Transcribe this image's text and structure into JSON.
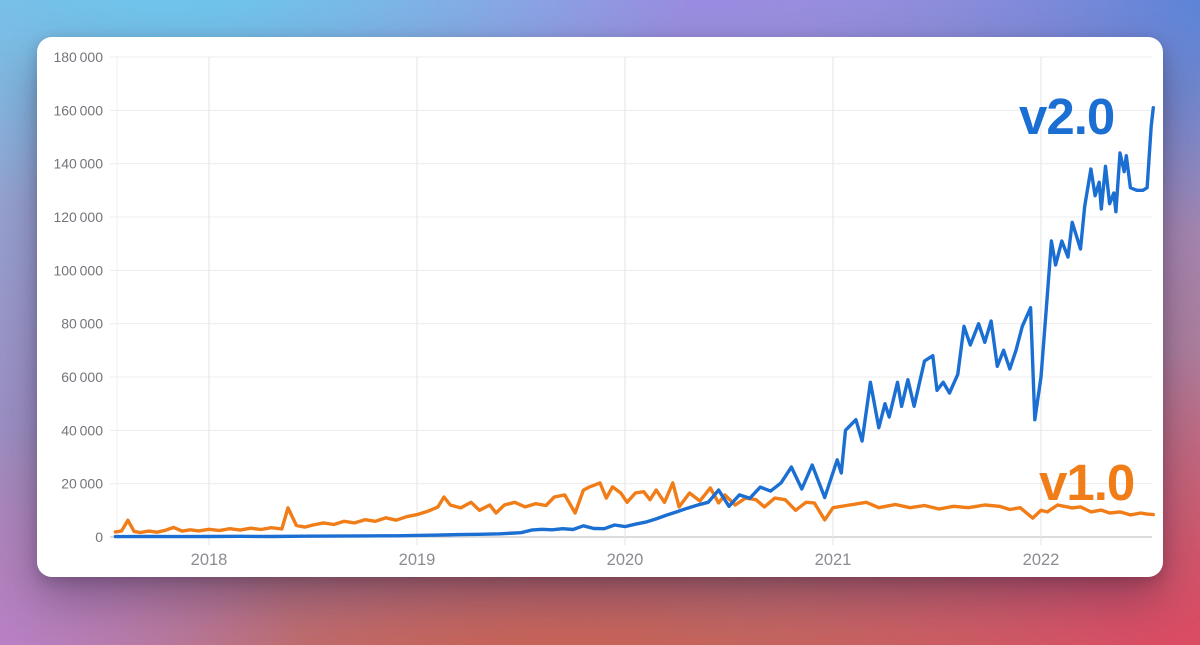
{
  "chart_data": {
    "type": "line",
    "title": "",
    "xlabel": "",
    "ylabel": "",
    "grid": true,
    "legend_position": "inline-end-of-line",
    "x_axis": {
      "range": [
        2017.55,
        2022.54
      ],
      "ticks": [
        {
          "year": 2018,
          "label": "2018"
        },
        {
          "year": 2019,
          "label": "2019"
        },
        {
          "year": 2020,
          "label": "2020"
        },
        {
          "year": 2021,
          "label": "2021"
        },
        {
          "year": 2022,
          "label": "2022"
        }
      ]
    },
    "y_axis": {
      "range": [
        0,
        180000
      ],
      "ticks": [
        {
          "value": 0,
          "label": "0"
        },
        {
          "value": 20000,
          "label": "20 000"
        },
        {
          "value": 40000,
          "label": "40 000"
        },
        {
          "value": 60000,
          "label": "60 000"
        },
        {
          "value": 80000,
          "label": "80 000"
        },
        {
          "value": 100000,
          "label": "100 000"
        },
        {
          "value": 120000,
          "label": "120 000"
        },
        {
          "value": 140000,
          "label": "140 000"
        },
        {
          "value": 160000,
          "label": "160 000"
        },
        {
          "value": 180000,
          "label": "180 000"
        }
      ]
    },
    "series": [
      {
        "name": "v1.0",
        "color": "#f07d18",
        "points": [
          [
            2017.55,
            1900
          ],
          [
            2017.58,
            2300
          ],
          [
            2017.61,
            6300
          ],
          [
            2017.64,
            2100
          ],
          [
            2017.67,
            1700
          ],
          [
            2017.71,
            2200
          ],
          [
            2017.75,
            1800
          ],
          [
            2017.79,
            2500
          ],
          [
            2017.83,
            3600
          ],
          [
            2017.87,
            2200
          ],
          [
            2017.91,
            2700
          ],
          [
            2017.95,
            2300
          ],
          [
            2018.0,
            2900
          ],
          [
            2018.05,
            2400
          ],
          [
            2018.1,
            3100
          ],
          [
            2018.15,
            2600
          ],
          [
            2018.2,
            3300
          ],
          [
            2018.25,
            2800
          ],
          [
            2018.3,
            3500
          ],
          [
            2018.35,
            3000
          ],
          [
            2018.38,
            10900
          ],
          [
            2018.42,
            4300
          ],
          [
            2018.46,
            3700
          ],
          [
            2018.5,
            4500
          ],
          [
            2018.55,
            5300
          ],
          [
            2018.6,
            4700
          ],
          [
            2018.65,
            5900
          ],
          [
            2018.7,
            5300
          ],
          [
            2018.75,
            6500
          ],
          [
            2018.8,
            5900
          ],
          [
            2018.85,
            7200
          ],
          [
            2018.9,
            6300
          ],
          [
            2018.95,
            7600
          ],
          [
            2019.0,
            8400
          ],
          [
            2019.05,
            9600
          ],
          [
            2019.1,
            11200
          ],
          [
            2019.13,
            15000
          ],
          [
            2019.16,
            12000
          ],
          [
            2019.21,
            10900
          ],
          [
            2019.26,
            13000
          ],
          [
            2019.3,
            10000
          ],
          [
            2019.35,
            12000
          ],
          [
            2019.38,
            9000
          ],
          [
            2019.42,
            12000
          ],
          [
            2019.47,
            13000
          ],
          [
            2019.52,
            11300
          ],
          [
            2019.57,
            12500
          ],
          [
            2019.62,
            11800
          ],
          [
            2019.66,
            15000
          ],
          [
            2019.71,
            15800
          ],
          [
            2019.76,
            9000
          ],
          [
            2019.8,
            17600
          ],
          [
            2019.83,
            18800
          ],
          [
            2019.88,
            20300
          ],
          [
            2019.91,
            14600
          ],
          [
            2019.94,
            18800
          ],
          [
            2019.98,
            16500
          ],
          [
            2020.01,
            13000
          ],
          [
            2020.05,
            16500
          ],
          [
            2020.09,
            17000
          ],
          [
            2020.12,
            14000
          ],
          [
            2020.15,
            17600
          ],
          [
            2020.19,
            13000
          ],
          [
            2020.23,
            20300
          ],
          [
            2020.26,
            11300
          ],
          [
            2020.31,
            16500
          ],
          [
            2020.36,
            13500
          ],
          [
            2020.41,
            18400
          ],
          [
            2020.45,
            12800
          ],
          [
            2020.48,
            15800
          ],
          [
            2020.53,
            12000
          ],
          [
            2020.58,
            14600
          ],
          [
            2020.63,
            14000
          ],
          [
            2020.67,
            11300
          ],
          [
            2020.72,
            14600
          ],
          [
            2020.77,
            14000
          ],
          [
            2020.82,
            10000
          ],
          [
            2020.87,
            13000
          ],
          [
            2020.91,
            12800
          ],
          [
            2020.96,
            6400
          ],
          [
            2021.0,
            11000
          ],
          [
            2021.08,
            12000
          ],
          [
            2021.16,
            13000
          ],
          [
            2021.22,
            11000
          ],
          [
            2021.3,
            12200
          ],
          [
            2021.37,
            11000
          ],
          [
            2021.44,
            11800
          ],
          [
            2021.51,
            10500
          ],
          [
            2021.58,
            11500
          ],
          [
            2021.65,
            11000
          ],
          [
            2021.73,
            12000
          ],
          [
            2021.8,
            11500
          ],
          [
            2021.85,
            10300
          ],
          [
            2021.9,
            11000
          ],
          [
            2021.96,
            7100
          ],
          [
            2022.0,
            10000
          ],
          [
            2022.03,
            9400
          ],
          [
            2022.08,
            12000
          ],
          [
            2022.15,
            10900
          ],
          [
            2022.19,
            11300
          ],
          [
            2022.24,
            9400
          ],
          [
            2022.29,
            10100
          ],
          [
            2022.33,
            9000
          ],
          [
            2022.38,
            9400
          ],
          [
            2022.43,
            8300
          ],
          [
            2022.48,
            9000
          ],
          [
            2022.51,
            8600
          ],
          [
            2022.54,
            8400
          ]
        ]
      },
      {
        "name": "v2.0",
        "color": "#1b6fd3",
        "points": [
          [
            2017.55,
            150
          ],
          [
            2017.7,
            200
          ],
          [
            2017.85,
            150
          ],
          [
            2018.0,
            200
          ],
          [
            2018.15,
            250
          ],
          [
            2018.3,
            200
          ],
          [
            2018.45,
            300
          ],
          [
            2018.6,
            350
          ],
          [
            2018.75,
            400
          ],
          [
            2018.9,
            450
          ],
          [
            2019.0,
            600
          ],
          [
            2019.1,
            700
          ],
          [
            2019.2,
            900
          ],
          [
            2019.3,
            1000
          ],
          [
            2019.4,
            1200
          ],
          [
            2019.5,
            1600
          ],
          [
            2019.55,
            2600
          ],
          [
            2019.6,
            2900
          ],
          [
            2019.65,
            2700
          ],
          [
            2019.7,
            3100
          ],
          [
            2019.75,
            2800
          ],
          [
            2019.8,
            4200
          ],
          [
            2019.85,
            3200
          ],
          [
            2019.9,
            3100
          ],
          [
            2019.95,
            4500
          ],
          [
            2020.0,
            3900
          ],
          [
            2020.05,
            4800
          ],
          [
            2020.1,
            5600
          ],
          [
            2020.15,
            6800
          ],
          [
            2020.2,
            8200
          ],
          [
            2020.25,
            9500
          ],
          [
            2020.3,
            10800
          ],
          [
            2020.35,
            12000
          ],
          [
            2020.4,
            13000
          ],
          [
            2020.45,
            17600
          ],
          [
            2020.5,
            11500
          ],
          [
            2020.55,
            15800
          ],
          [
            2020.6,
            14500
          ],
          [
            2020.65,
            18700
          ],
          [
            2020.7,
            17200
          ],
          [
            2020.75,
            20300
          ],
          [
            2020.8,
            26200
          ],
          [
            2020.85,
            18000
          ],
          [
            2020.9,
            27000
          ],
          [
            2020.96,
            14800
          ],
          [
            2021.02,
            28900
          ],
          [
            2021.04,
            24000
          ],
          [
            2021.06,
            40000
          ],
          [
            2021.11,
            44000
          ],
          [
            2021.14,
            36000
          ],
          [
            2021.18,
            58000
          ],
          [
            2021.22,
            41000
          ],
          [
            2021.25,
            50000
          ],
          [
            2021.27,
            45000
          ],
          [
            2021.31,
            58000
          ],
          [
            2021.33,
            49000
          ],
          [
            2021.36,
            59000
          ],
          [
            2021.39,
            49000
          ],
          [
            2021.44,
            66000
          ],
          [
            2021.48,
            68000
          ],
          [
            2021.5,
            55000
          ],
          [
            2021.53,
            58000
          ],
          [
            2021.56,
            54000
          ],
          [
            2021.6,
            61000
          ],
          [
            2021.63,
            79000
          ],
          [
            2021.66,
            72000
          ],
          [
            2021.7,
            80000
          ],
          [
            2021.73,
            73000
          ],
          [
            2021.76,
            81000
          ],
          [
            2021.79,
            64000
          ],
          [
            2021.82,
            70000
          ],
          [
            2021.85,
            63000
          ],
          [
            2021.88,
            70000
          ],
          [
            2021.91,
            79000
          ],
          [
            2021.95,
            86000
          ],
          [
            2021.97,
            44000
          ],
          [
            2022.0,
            60000
          ],
          [
            2022.03,
            90000
          ],
          [
            2022.05,
            111000
          ],
          [
            2022.07,
            102000
          ],
          [
            2022.1,
            111000
          ],
          [
            2022.13,
            105000
          ],
          [
            2022.15,
            118000
          ],
          [
            2022.19,
            108000
          ],
          [
            2022.21,
            124000
          ],
          [
            2022.24,
            138000
          ],
          [
            2022.26,
            128000
          ],
          [
            2022.28,
            133000
          ],
          [
            2022.29,
            123000
          ],
          [
            2022.31,
            139000
          ],
          [
            2022.33,
            125000
          ],
          [
            2022.35,
            129000
          ],
          [
            2022.36,
            122000
          ],
          [
            2022.38,
            144000
          ],
          [
            2022.4,
            137000
          ],
          [
            2022.41,
            143000
          ],
          [
            2022.43,
            131000
          ],
          [
            2022.46,
            130000
          ],
          [
            2022.49,
            130000
          ],
          [
            2022.51,
            131000
          ],
          [
            2022.53,
            154000
          ],
          [
            2022.54,
            161000
          ]
        ]
      }
    ]
  }
}
